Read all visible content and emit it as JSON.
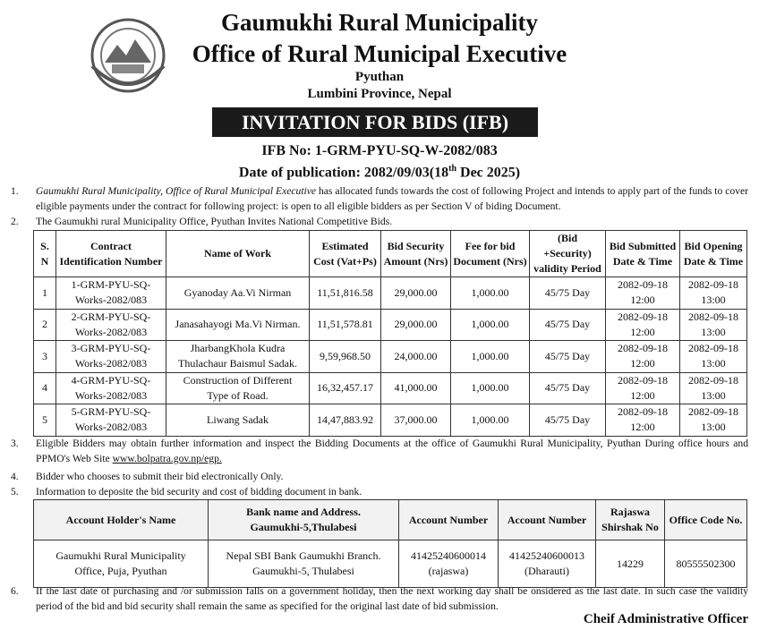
{
  "header": {
    "title": "Gaumukhi Rural Municipality",
    "office": "Office of Rural Municipal Executive",
    "district": "Pyuthan",
    "province": "Lumbini Province, Nepal",
    "banner": "INVITATION FOR BIDS (IFB)",
    "ifb_no": "IFB No: 1-GRM-PYU-SQ-W-2082/083",
    "publication": {
      "text": "Date of publication: 2082/09/03(18",
      "sup": "th",
      "tail": " Dec 2025)"
    }
  },
  "items": [
    {
      "number": "1.",
      "parts": [
        {
          "text": "Gaumukhi Rural Municipality, Office of Rural Municipal Executive",
          "style": "italic"
        },
        {
          "text": " has allocated funds towards the cost of following Project and intends to apply part of the funds to cover eligible payments under the contract for following project: is open to all eligible bidders as per Section V of biding Document."
        }
      ]
    },
    {
      "number": "2.",
      "parts": [
        {
          "text": "The Gaumukhi rural Municipality Office, Pyuthan Invites National Competitive Bids."
        }
      ]
    },
    {
      "number": "3.",
      "parts": [
        {
          "text": "Eligible Bidders may obtain further information and inspect the Bidding Documents at the office  of  Gaumukhi Rural Municipality, Pyuthan During office hours and PPMO's Web Site  "
        },
        {
          "text": "www.bolpatra.gov.np/egp.",
          "style": "link"
        }
      ]
    },
    {
      "number": "4.",
      "parts": [
        {
          "text": "Bidder  who chooses  to submit their bid electronically Only."
        }
      ]
    },
    {
      "number": "5.",
      "parts": [
        {
          "text": "Information to deposite the bid security and cost of bidding document in bank."
        }
      ]
    },
    {
      "number": "6.",
      "parts": [
        {
          "text": "If the last date of purchasing and /or submission falls on a government holiday, then the next working day shall be onsidered as the last date. In such case the validity period of the bid and bid security shall remain the same as specified for the original last date of bid submission."
        }
      ]
    }
  ],
  "bid_table": {
    "headers": [
      [
        "S.",
        "N"
      ],
      [
        "Contract",
        "Identification Number"
      ],
      [
        "Name of Work"
      ],
      [
        "Estimated",
        "Cost (Vat+Ps)"
      ],
      [
        "Bid Security",
        "Amount (Nrs)"
      ],
      [
        "Fee for bid",
        "Document (Nrs)"
      ],
      [
        "(Bid",
        "+Security)",
        "validity Period"
      ],
      [
        "Bid Submitted",
        "Date & Time"
      ],
      [
        "Bid Opening",
        "Date & Time"
      ]
    ],
    "rows": [
      [
        "1",
        [
          "1-GRM-PYU-SQ-",
          "Works-2082/083"
        ],
        "Gyanoday Aa.Vi Nirman",
        "11,51,816.58",
        "29,000.00",
        "1,000.00",
        "45/75 Day",
        [
          "2082-09-18",
          "12:00"
        ],
        [
          "2082-09-18",
          "13:00"
        ]
      ],
      [
        "2",
        [
          "2-GRM-PYU-SQ-",
          "Works-2082/083"
        ],
        "Janasahayogi Ma.Vi Nirman.",
        "11,51,578.81",
        "29,000.00",
        "1,000.00",
        "45/75 Day",
        [
          "2082-09-18",
          "12:00"
        ],
        [
          "2082-09-18",
          "13:00"
        ]
      ],
      [
        "3",
        [
          "3-GRM-PYU-SQ-",
          "Works-2082/083"
        ],
        [
          "JharbangKhola Kudra",
          "Thulachaur Baismul Sadak."
        ],
        "9,59,968.50",
        "24,000.00",
        "1,000.00",
        "45/75 Day",
        [
          "2082-09-18",
          "12:00"
        ],
        [
          "2082-09-18",
          "13:00"
        ]
      ],
      [
        "4",
        [
          "4-GRM-PYU-SQ-",
          "Works-2082/083"
        ],
        [
          "Construction of Different",
          "Type of Road."
        ],
        "16,32,457.17",
        "41,000.00",
        "1,000.00",
        "45/75 Day",
        [
          "2082-09-18",
          "12:00"
        ],
        [
          "2082-09-18",
          "13:00"
        ]
      ],
      [
        "5",
        [
          "5-GRM-PYU-SQ-",
          "Works-2082/083"
        ],
        "Liwang Sadak",
        "14,47,883.92",
        "37,000.00",
        "1,000.00",
        "45/75 Day",
        [
          "2082-09-18",
          "12:00"
        ],
        [
          "2082-09-18",
          "13:00"
        ]
      ]
    ]
  },
  "bank_table": {
    "headers": [
      [
        "Account Holder's Name"
      ],
      [
        "Bank name and Address.",
        "Gaumukhi-5,Thulabesi"
      ],
      [
        "Account Number"
      ],
      [
        "Account Number"
      ],
      [
        "Rajaswa",
        "Shirshak No"
      ],
      [
        "Office Code No."
      ]
    ],
    "rows": [
      [
        [
          "Gaumukhi Rural Municipality",
          "Office, Puja, Pyuthan"
        ],
        [
          "Nepal SBI Bank Gaumukhi Branch.",
          "Gaumukhi-5, Thulabesi"
        ],
        [
          "41425240600014",
          "(rajaswa)"
        ],
        [
          "41425240600013",
          "(Dharauti)"
        ],
        "14229",
        "80555502300"
      ]
    ]
  },
  "signature": "Cheif Administrative Officer"
}
